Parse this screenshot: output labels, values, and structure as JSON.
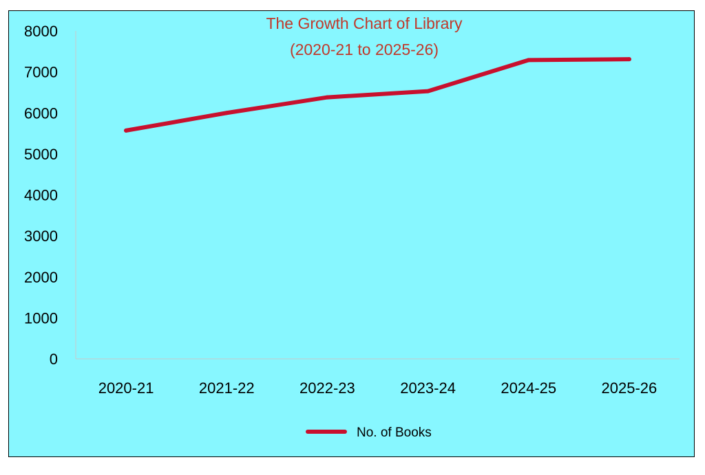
{
  "chart_data": {
    "type": "line",
    "title": "The Growth Chart of Library",
    "subtitle": "(2020-21 to 2025-26)",
    "categories": [
      "2020-21",
      "2021-22",
      "2022-23",
      "2023-24",
      "2024-25",
      "2025-26"
    ],
    "series": [
      {
        "name": "No. of Books",
        "values": [
          5570,
          6000,
          6380,
          6530,
          7290,
          7310
        ]
      }
    ],
    "ylim": [
      0,
      8000
    ],
    "yticks": [
      "0",
      "1000",
      "2000",
      "3000",
      "4000",
      "5000",
      "6000",
      "7000",
      "8000"
    ],
    "xlabel": "",
    "ylabel": "",
    "grid": false,
    "legend_position": "bottom",
    "colors": {
      "background": "#87F7FF",
      "line": "#C8102E",
      "title": "#C0392B",
      "axis": "#C8C8C8"
    }
  }
}
